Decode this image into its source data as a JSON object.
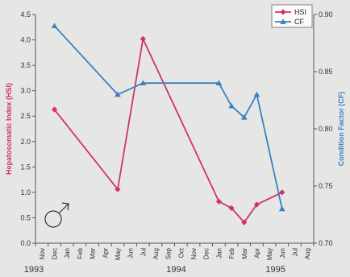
{
  "chart_data": {
    "type": "line",
    "x": [
      "Dec 1993",
      "May 1994",
      "Jul 1994",
      "Jan 1995",
      "Feb 1995",
      "Mar 1995",
      "Apr 1995",
      "Jun 1995"
    ],
    "series": [
      {
        "name": "HSI",
        "axis": "left",
        "color": "#d0336a",
        "marker": "diamond",
        "x": [
          "Dec 1993",
          "May 1994",
          "Jul 1994",
          "Jan 1995",
          "Feb 1995",
          "Mar 1995",
          "Apr 1995",
          "Jun 1995"
        ],
        "values": [
          2.63,
          1.06,
          4.02,
          0.82,
          0.69,
          0.41,
          0.76,
          1.0
        ]
      },
      {
        "name": "CF",
        "axis": "right",
        "color": "#3b7fc4",
        "marker": "triangle",
        "x": [
          "Dec 1993",
          "May 1994",
          "Jul 1994",
          "Jan 1995",
          "Feb 1995",
          "Mar 1995",
          "Apr 1995",
          "Jun 1995"
        ],
        "values": [
          0.89,
          0.83,
          0.84,
          0.84,
          0.82,
          0.81,
          0.83,
          0.73
        ]
      }
    ],
    "xaxis": {
      "months": [
        "Nov",
        "Dec",
        "Jan",
        "Feb",
        "Mar",
        "Apr",
        "May",
        "Jun",
        "Jul",
        "Aug",
        "Sep",
        "Oct",
        "Nov",
        "Dec",
        "Jan",
        "Feb",
        "Mar",
        "Apr",
        "May",
        "Jun",
        "Jul",
        "Aug"
      ],
      "years": [
        "1993",
        "1994",
        "1995"
      ]
    },
    "ylabel": "Hepatosomatic Index (HSI)",
    "ylabel_color": "#d0336a",
    "ylim": [
      0,
      4.5
    ],
    "yticks": [
      "0.0",
      "0.5",
      "1.0",
      "1.5",
      "2.0",
      "2.5",
      "3.0",
      "3.5",
      "4.0",
      "4.5"
    ],
    "y2label": "Condition Factor (CF)",
    "y2label_color": "#3b7fc4",
    "y2lim": [
      0.7,
      0.9
    ],
    "y2ticks": [
      "0.70",
      "0.75",
      "0.80",
      "0.85",
      "0.90"
    ],
    "legend_position": "top-right",
    "symbol": "male-symbol"
  }
}
